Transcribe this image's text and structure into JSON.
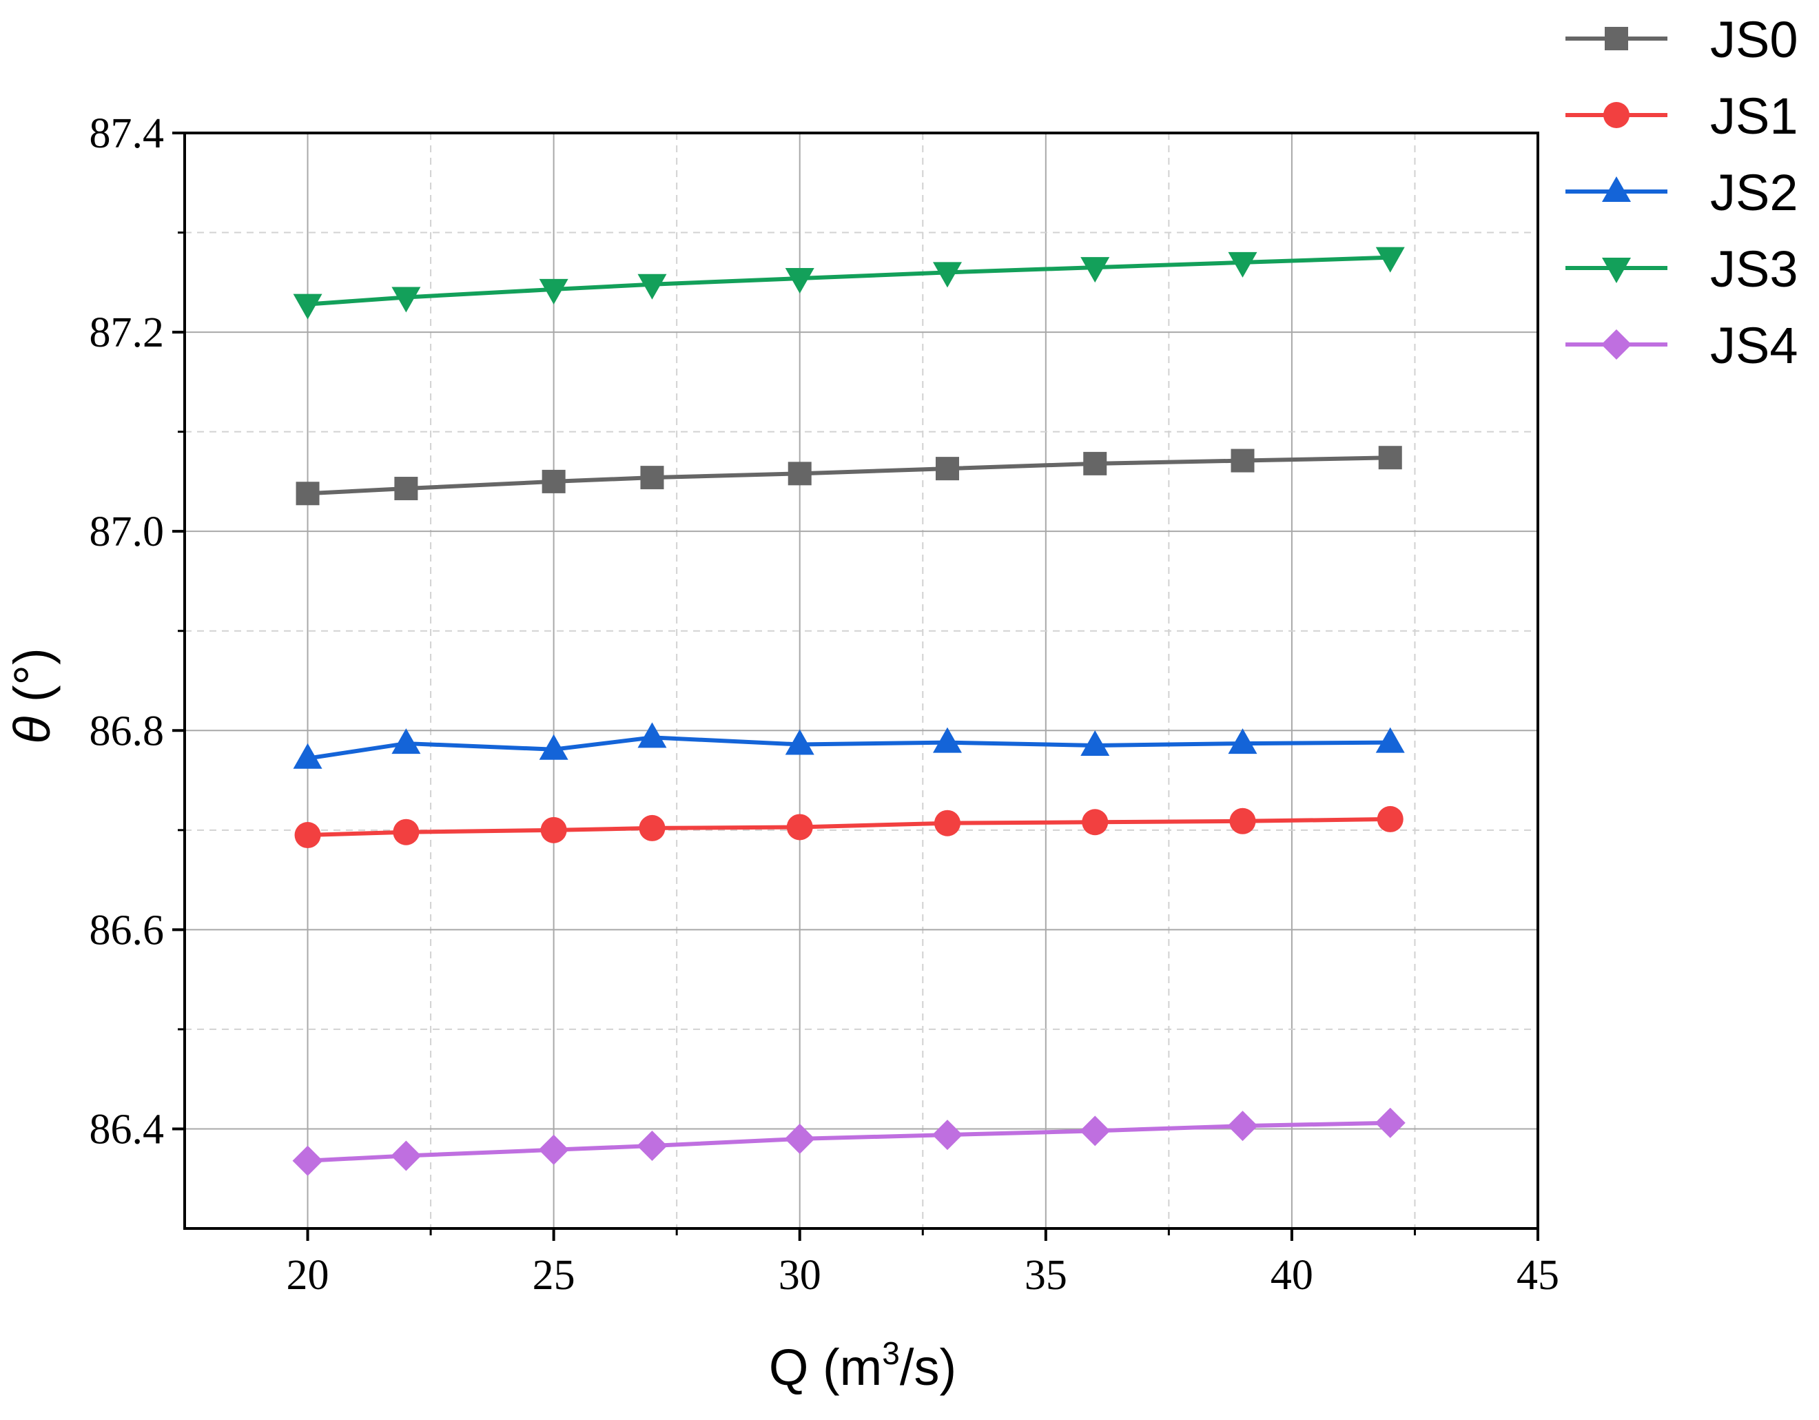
{
  "chart_data": {
    "type": "line",
    "title": "",
    "xlabel": {
      "prefix": "Q (m",
      "sup": "3",
      "suffix": "/s)"
    },
    "ylabel": {
      "symbol": "θ",
      "unit": " (°)"
    },
    "xlim": [
      17.5,
      45
    ],
    "ylim": [
      86.3,
      87.4
    ],
    "xticks": [
      20,
      25,
      30,
      35,
      40,
      45
    ],
    "xtick_labels": [
      "20",
      "25",
      "30",
      "35",
      "40",
      "45"
    ],
    "yticks": [
      86.4,
      86.6,
      86.8,
      87.0,
      87.2,
      87.4
    ],
    "ytick_labels": [
      "86.4",
      "86.6",
      "86.8",
      "87.0",
      "87.2",
      "87.4"
    ],
    "grid": true,
    "legend_position": "top-right outside",
    "x": [
      20,
      22,
      25,
      27,
      30,
      33,
      36,
      39,
      42
    ],
    "series": [
      {
        "name": "JS0",
        "color": "#666666",
        "marker": "square",
        "values": [
          87.038,
          87.043,
          87.05,
          87.054,
          87.058,
          87.063,
          87.068,
          87.071,
          87.074
        ]
      },
      {
        "name": "JS1",
        "color": "#f24040",
        "marker": "circle",
        "values": [
          86.695,
          86.698,
          86.7,
          86.702,
          86.703,
          86.707,
          86.708,
          86.709,
          86.711
        ]
      },
      {
        "name": "JS2",
        "color": "#1464d8",
        "marker": "triangle-up",
        "values": [
          86.772,
          86.787,
          86.781,
          86.793,
          86.786,
          86.788,
          86.785,
          86.787,
          86.788
        ]
      },
      {
        "name": "JS3",
        "color": "#13a05a",
        "marker": "triangle-down",
        "values": [
          87.228,
          87.235,
          87.243,
          87.248,
          87.254,
          87.26,
          87.265,
          87.27,
          87.275
        ]
      },
      {
        "name": "JS4",
        "color": "#bf6fe0",
        "marker": "diamond",
        "values": [
          86.368,
          86.373,
          86.379,
          86.383,
          86.39,
          86.394,
          86.398,
          86.403,
          86.406
        ]
      }
    ]
  }
}
